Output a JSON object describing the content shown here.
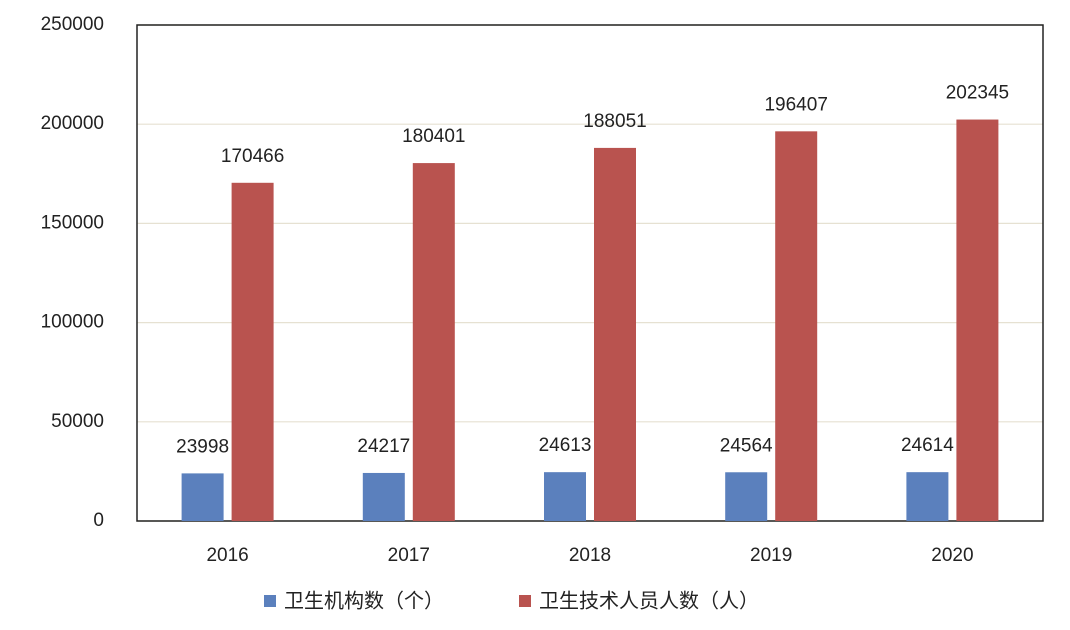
{
  "chart_data": {
    "type": "bar",
    "categories": [
      "2016",
      "2017",
      "2018",
      "2019",
      "2020"
    ],
    "series": [
      {
        "name": "卫生机构数（个）",
        "color": "#5b80bd",
        "values": [
          23998,
          24217,
          24613,
          24564,
          24614
        ]
      },
      {
        "name": "卫生技术人员人数（人）",
        "color": "#b9534f",
        "values": [
          170466,
          180401,
          188051,
          196407,
          202345
        ]
      }
    ],
    "ylim": [
      0,
      250000
    ],
    "yticks": [
      0,
      50000,
      100000,
      150000,
      200000,
      250000
    ],
    "grid": true
  }
}
